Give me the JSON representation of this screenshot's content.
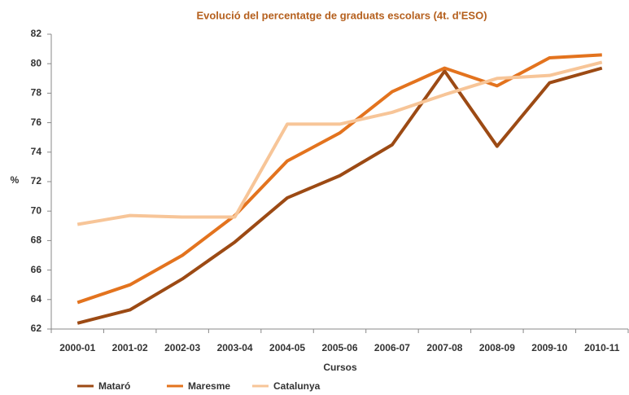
{
  "chart_data": {
    "type": "line",
    "title": "Evolució del percentatge  de graduats escolars (4t. d'ESO)",
    "x_label": "Cursos",
    "y_label": "%",
    "categories": [
      "2000-01",
      "2001-02",
      "2002-03",
      "2003-04",
      "2004-05",
      "2005-06",
      "2006-07",
      "2007-08",
      "2008-09",
      "2009-10",
      "2010-11"
    ],
    "series": [
      {
        "name": "Mataró",
        "color": "#9c4a14",
        "values": [
          62.4,
          63.3,
          65.4,
          67.9,
          70.9,
          72.4,
          74.5,
          79.5,
          74.4,
          78.7,
          79.7
        ]
      },
      {
        "name": "Maresme",
        "color": "#e3731e",
        "values": [
          63.8,
          65.0,
          67.0,
          69.7,
          73.4,
          75.3,
          78.1,
          79.7,
          78.5,
          80.4,
          80.6
        ]
      },
      {
        "name": "Catalunya",
        "color": "#f7c598",
        "values": [
          69.1,
          69.7,
          69.6,
          69.6,
          75.9,
          75.9,
          76.7,
          77.9,
          79.0,
          79.2,
          80.1
        ]
      }
    ],
    "ylim": [
      62,
      82
    ],
    "yticks": [
      62,
      64,
      66,
      68,
      70,
      72,
      74,
      76,
      78,
      80,
      82
    ],
    "grid": false,
    "legend": "bottom"
  }
}
